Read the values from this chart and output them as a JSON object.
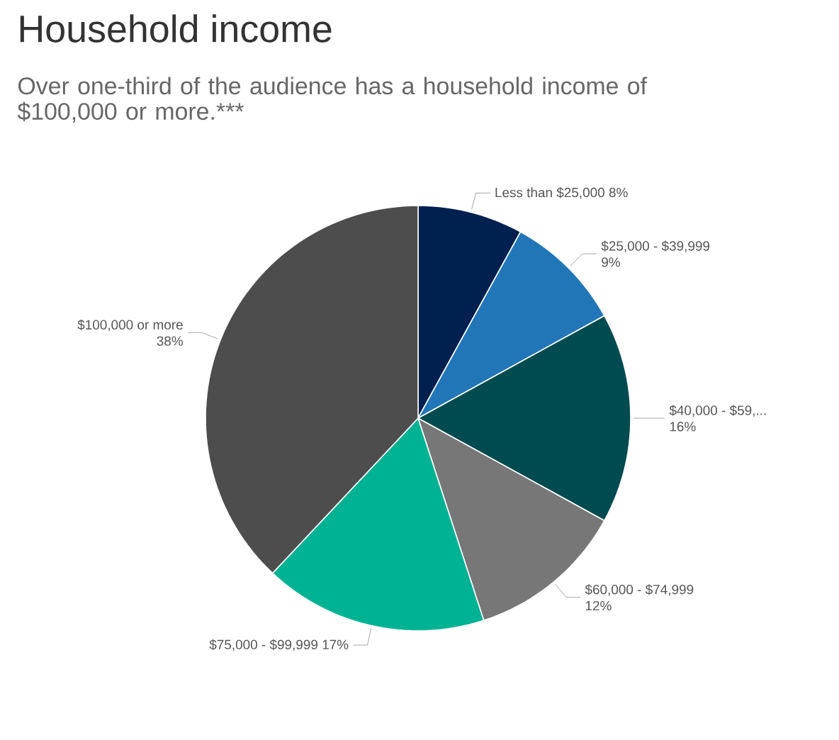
{
  "chart_data": {
    "type": "pie",
    "title": "Household income",
    "subtitle": "Over one-third of the audience has a household income of $100,000 or more.***",
    "categories": [
      "Less than $25,000",
      "$25,000 - $39,999",
      "$40,000 - $59,...",
      "$60,000 - $74,999",
      "$75,000 - $99,999",
      "$100,000 or more"
    ],
    "values": [
      8,
      9,
      16,
      12,
      17,
      38
    ],
    "value_labels": [
      "8%",
      "9%",
      "16%",
      "12%",
      "17%",
      "38%"
    ],
    "colors": [
      "#002050",
      "#2176b8",
      "#004b50",
      "#777777",
      "#00b294",
      "#4d4d4d"
    ]
  }
}
